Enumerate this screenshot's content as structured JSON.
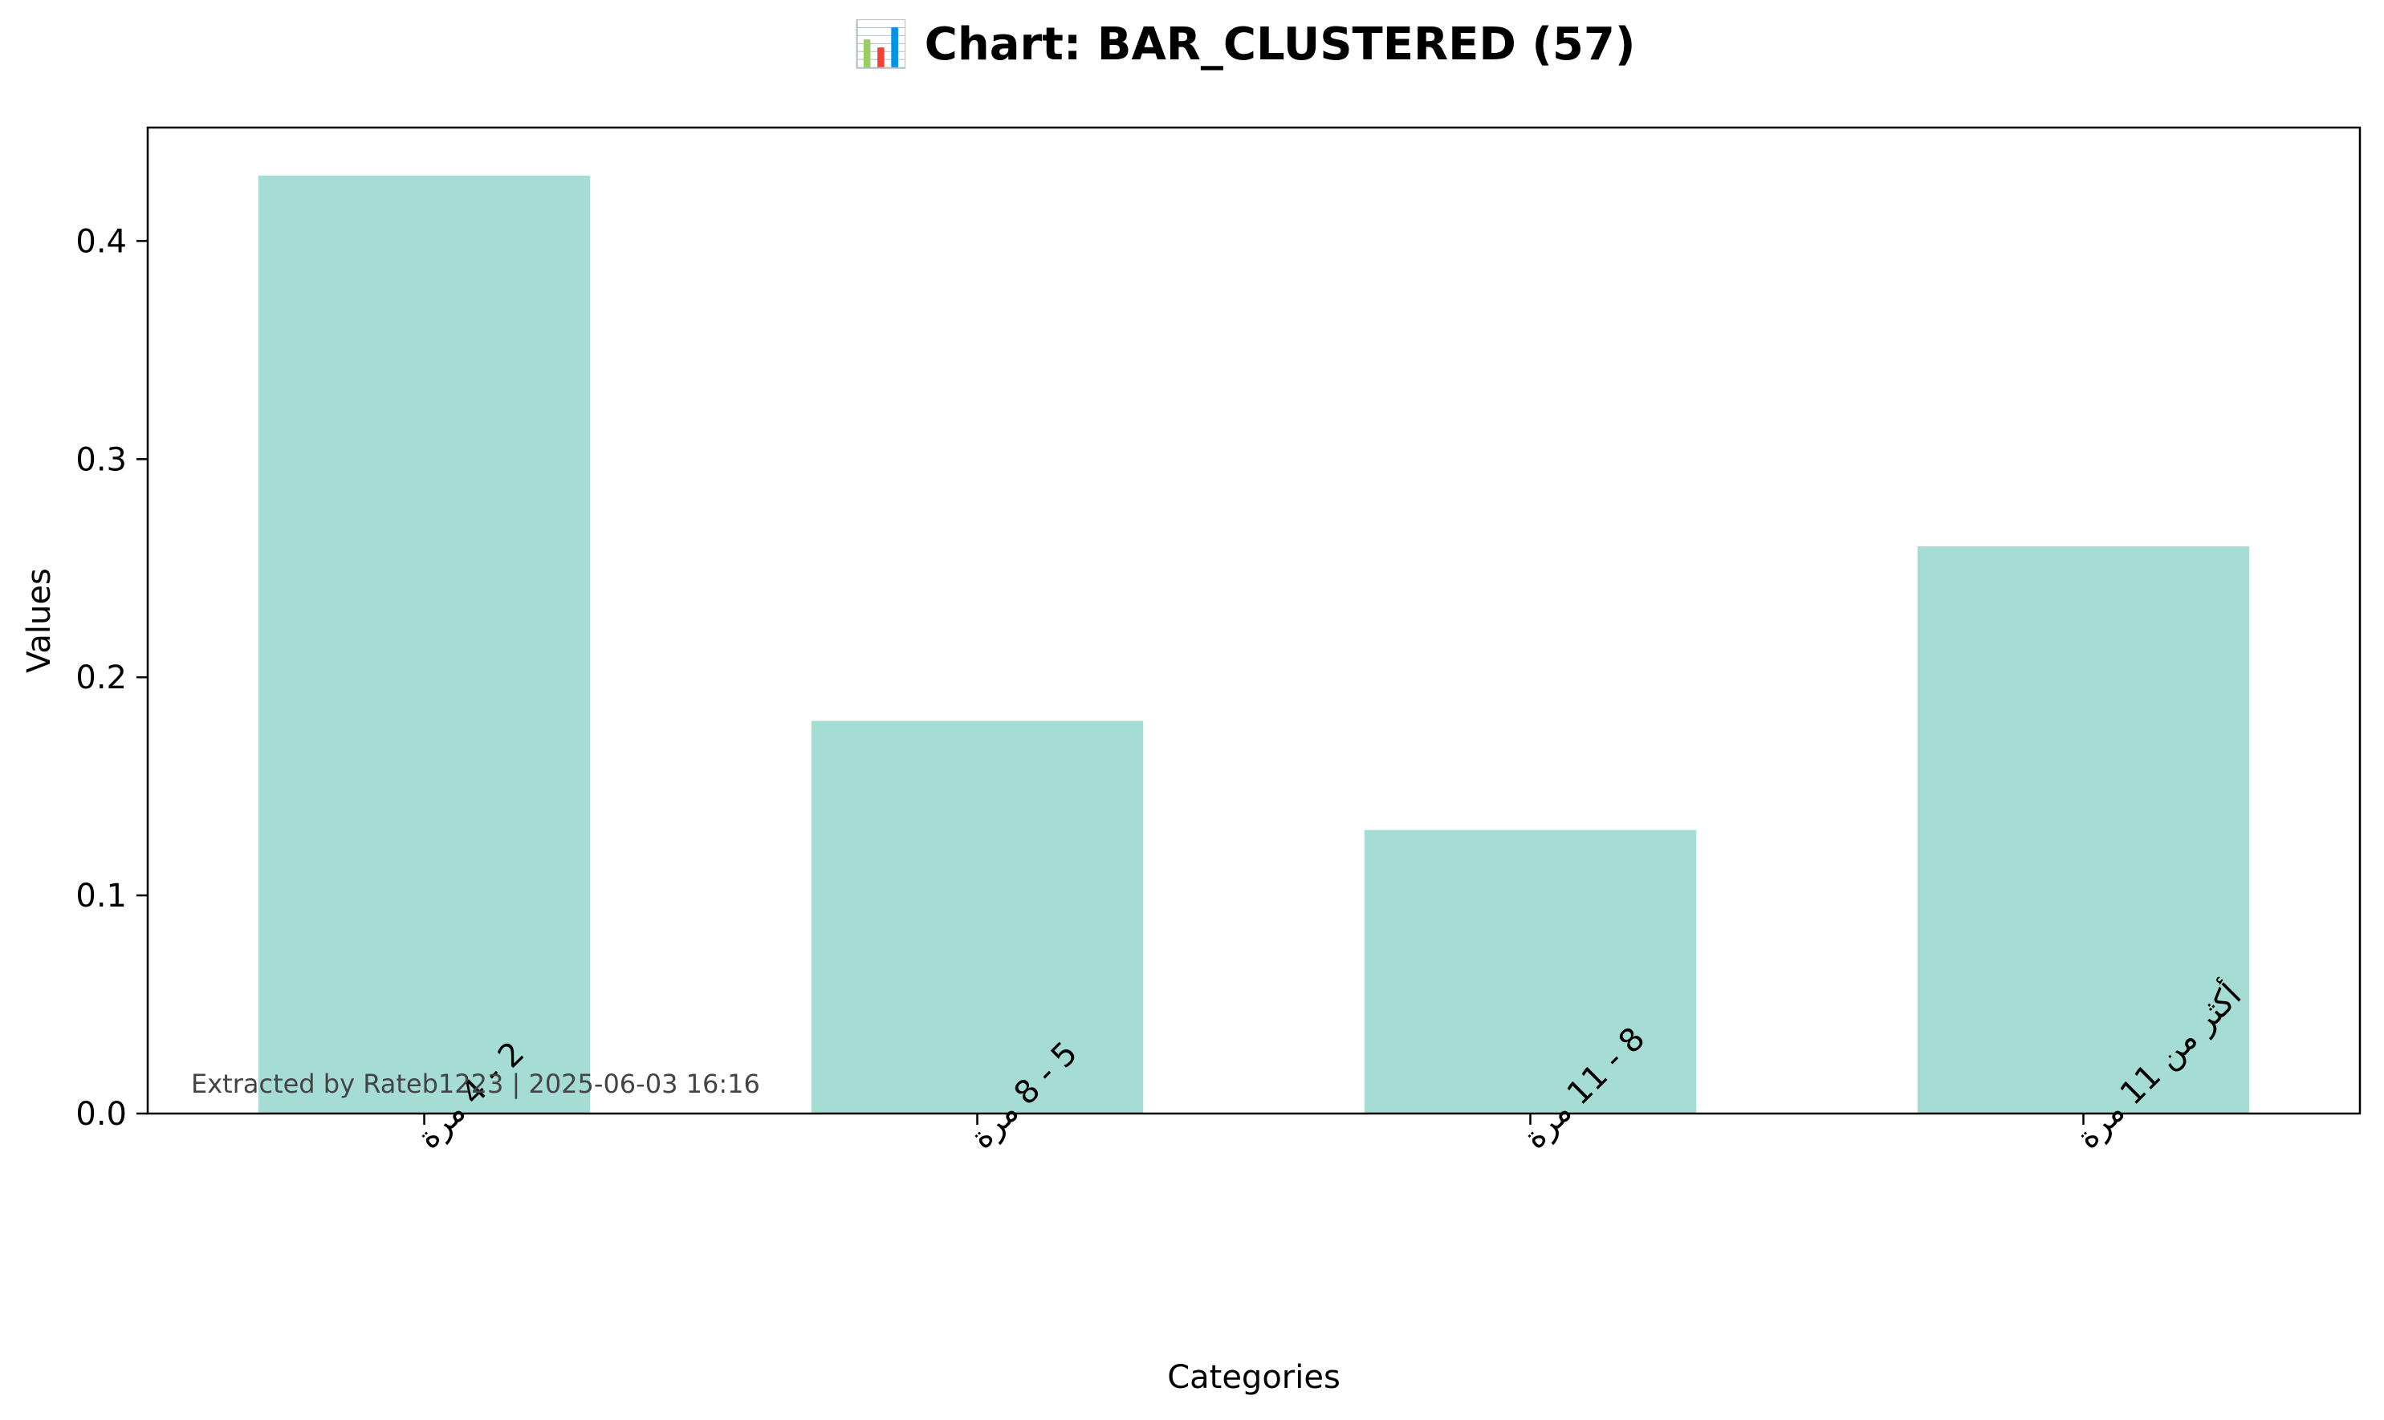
{
  "title": "📊 Chart: BAR_CLUSTERED (57)",
  "watermark": "Extracted by Rateb1223 | 2025-06-03 16:16",
  "colors": {
    "bar": "#a5dcd4",
    "axis": "#000000",
    "watermark": "#444444"
  },
  "chart_data": {
    "type": "bar",
    "title": "📊 Chart: BAR_CLUSTERED (57)",
    "xlabel": "Categories",
    "ylabel": "Values",
    "categories": [
      "2 - 4 مرة",
      "5 - 8 مرة",
      "8 - 11 مرة",
      "أكثر من 11 مرة"
    ],
    "values": [
      0.43,
      0.18,
      0.13,
      0.26
    ],
    "ylim": [
      0,
      0.452
    ],
    "yticks": [
      0.0,
      0.1,
      0.2,
      0.3,
      0.4
    ],
    "ytick_labels": [
      "0.0",
      "0.1",
      "0.2",
      "0.3",
      "0.4"
    ],
    "grid": false,
    "legend": "none"
  }
}
